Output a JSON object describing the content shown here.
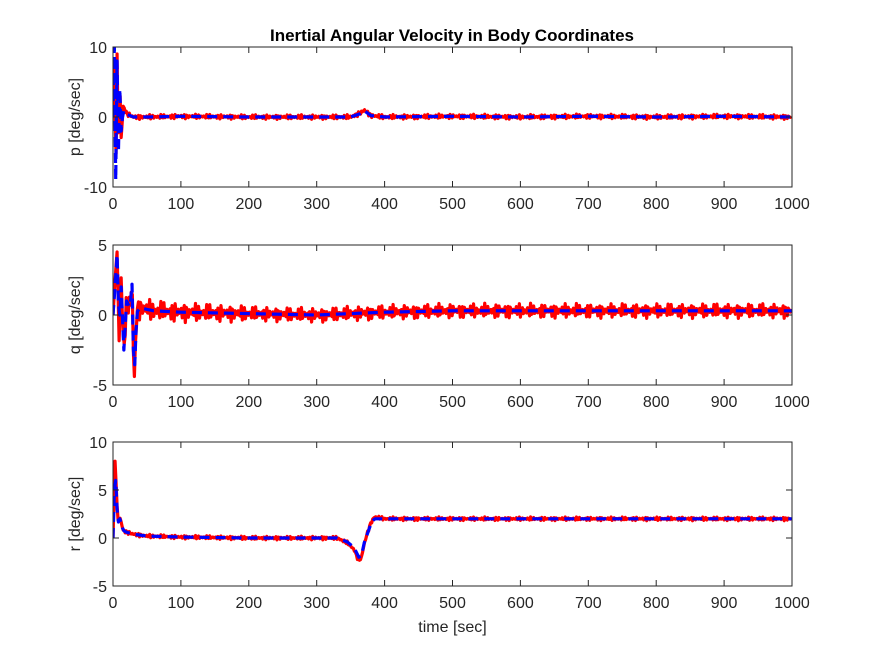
{
  "figure": {
    "title": "Inertial Angular Velocity in Body Coordinates"
  },
  "chart_data": [
    {
      "type": "line",
      "ylabel": "p [deg/sec]",
      "xlabel": "",
      "xlim": [
        0,
        1000
      ],
      "ylim": [
        -10,
        10
      ],
      "xticks": [
        0,
        100,
        200,
        300,
        400,
        500,
        600,
        700,
        800,
        900,
        1000
      ],
      "yticks": [
        -10,
        0,
        10
      ],
      "grid": false,
      "series": [
        {
          "style": "dashed",
          "color": "#0000ff",
          "x": [
            0,
            2,
            4,
            6,
            8,
            10,
            12,
            15,
            20,
            30,
            50,
            100,
            200,
            300,
            350,
            365,
            370,
            380,
            400,
            500,
            600,
            700,
            800,
            900,
            1000
          ],
          "y": [
            0,
            10,
            -9,
            8,
            -5,
            4,
            -2,
            1,
            0.4,
            0,
            0,
            0.1,
            0,
            0,
            0,
            0.5,
            0.9,
            0.2,
            0,
            0.1,
            0,
            0.1,
            0,
            0.1,
            0
          ]
        },
        {
          "style": "solid",
          "color": "#ff0000",
          "x": [
            0,
            2,
            4,
            6,
            8,
            10,
            12,
            15,
            20,
            30,
            50,
            100,
            200,
            300,
            350,
            365,
            370,
            380,
            400,
            500,
            600,
            700,
            800,
            900,
            1000
          ],
          "y": [
            0,
            11,
            -10,
            9,
            -6,
            5,
            -3,
            1.5,
            0.5,
            0,
            0,
            0.1,
            0,
            0,
            0,
            0.6,
            1.0,
            0.2,
            0,
            0.1,
            0,
            0.1,
            0,
            0.1,
            0
          ],
          "oscillation_amplitude": 0.35
        }
      ]
    },
    {
      "type": "line",
      "ylabel": "q [deg/sec]",
      "xlabel": "",
      "xlim": [
        0,
        1000
      ],
      "ylim": [
        -5,
        5
      ],
      "xticks": [
        0,
        100,
        200,
        300,
        400,
        500,
        600,
        700,
        800,
        900,
        1000
      ],
      "yticks": [
        -5,
        0,
        5
      ],
      "grid": false,
      "series": [
        {
          "style": "dashed",
          "color": "#0000ff",
          "x": [
            0,
            3,
            6,
            9,
            12,
            16,
            20,
            25,
            28,
            31,
            35,
            40,
            60,
            100,
            200,
            300,
            400,
            500,
            600,
            700,
            800,
            900,
            1000
          ],
          "y": [
            0,
            2.0,
            4.3,
            -1.0,
            2.0,
            -2.5,
            1.0,
            0.5,
            2.2,
            -4.8,
            0.2,
            0.5,
            0.3,
            0.2,
            0.1,
            0.0,
            0.2,
            0.3,
            0.3,
            0.3,
            0.3,
            0.3,
            0.3
          ]
        },
        {
          "style": "solid",
          "color": "#ff0000",
          "x": [
            0,
            3,
            6,
            9,
            12,
            16,
            20,
            25,
            28,
            31,
            35,
            40,
            60,
            100,
            200,
            300,
            400,
            500,
            600,
            700,
            800,
            900,
            1000
          ],
          "y": [
            0,
            2.5,
            4.5,
            -1.5,
            2.5,
            -2.8,
            1.2,
            0.5,
            2.5,
            -5.0,
            0.3,
            0.5,
            0.3,
            0.2,
            0.1,
            0.0,
            0.2,
            0.3,
            0.3,
            0.3,
            0.3,
            0.3,
            0.3
          ],
          "oscillation_amplitude": 0.55
        }
      ]
    },
    {
      "type": "line",
      "ylabel": "r [deg/sec]",
      "xlabel": "time [sec]",
      "xlim": [
        0,
        1000
      ],
      "ylim": [
        -5,
        10
      ],
      "xticks": [
        0,
        100,
        200,
        300,
        400,
        500,
        600,
        700,
        800,
        900,
        1000
      ],
      "yticks": [
        -5,
        0,
        5,
        10
      ],
      "grid": false,
      "series": [
        {
          "style": "dashed",
          "color": "#0000ff",
          "x": [
            0,
            3,
            5,
            7,
            10,
            15,
            20,
            30,
            50,
            100,
            200,
            300,
            330,
            345,
            355,
            362,
            366,
            370,
            375,
            380,
            385,
            400,
            500,
            600,
            700,
            800,
            900,
            1000
          ],
          "y": [
            0,
            7.5,
            4.5,
            1.5,
            2.0,
            0.8,
            0.6,
            0.4,
            0.2,
            0.1,
            0.0,
            0.0,
            0.0,
            -0.4,
            -1.0,
            -2.0,
            -1.8,
            -0.5,
            0.5,
            1.5,
            2.0,
            2.0,
            2.0,
            2.0,
            2.0,
            2.0,
            2.0,
            2.0
          ]
        },
        {
          "style": "solid",
          "color": "#ff0000",
          "x": [
            0,
            3,
            5,
            7,
            10,
            15,
            20,
            30,
            50,
            100,
            200,
            300,
            330,
            345,
            355,
            362,
            366,
            370,
            375,
            380,
            385,
            400,
            500,
            600,
            700,
            800,
            900,
            1000
          ],
          "y": [
            0,
            8.0,
            5.0,
            1.8,
            2.2,
            0.8,
            0.6,
            0.4,
            0.2,
            0.1,
            0.0,
            0.0,
            0.0,
            -0.5,
            -1.2,
            -2.4,
            -2.0,
            -0.6,
            0.6,
            1.6,
            2.2,
            2.0,
            2.0,
            2.0,
            2.0,
            2.0,
            2.0,
            2.0
          ],
          "oscillation_amplitude": 0.2
        }
      ]
    }
  ]
}
